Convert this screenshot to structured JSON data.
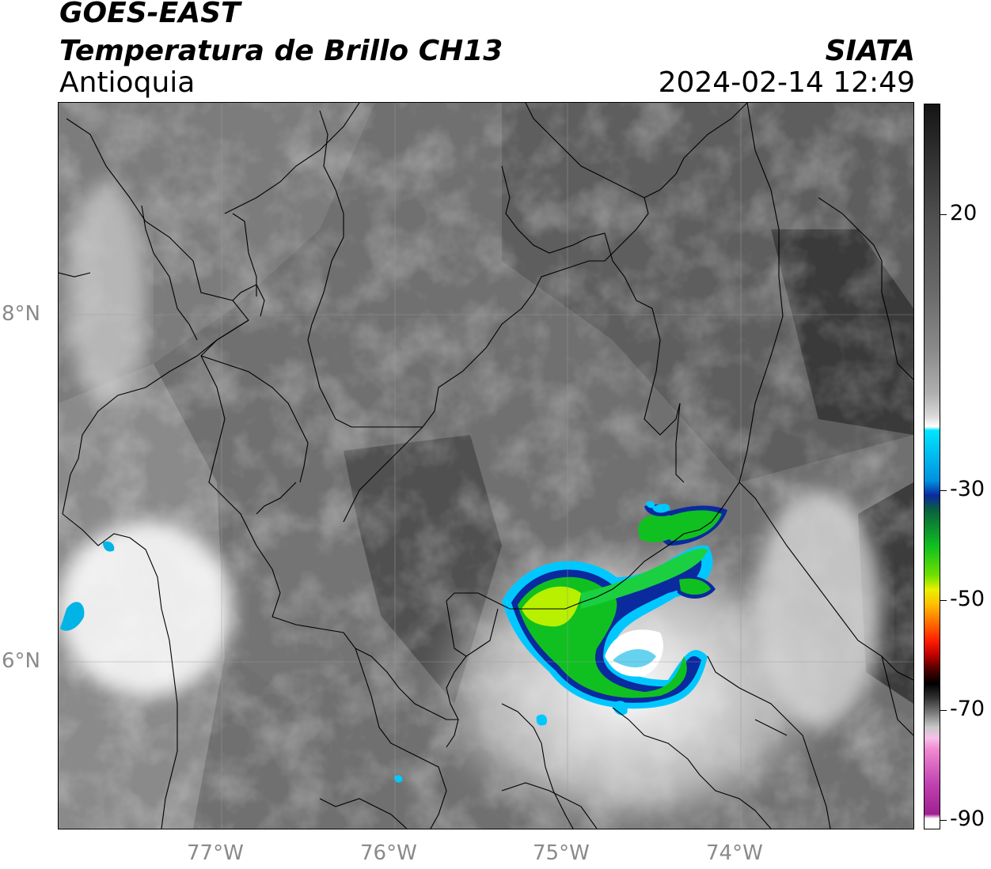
{
  "header": {
    "satellite": "GOES-EAST",
    "product": "Temperatura de Brillo CH13",
    "region": "Antioquia",
    "organization": "SIATA",
    "datetime": "2024-02-14 12:49"
  },
  "map": {
    "lat_ticks": [
      "8°N",
      "6°N"
    ],
    "lon_ticks": [
      "77°W",
      "76°W",
      "75°W",
      "74°W"
    ],
    "lon_range": [
      -77.95,
      -73.0
    ],
    "lat_range": [
      4.95,
      9.15
    ],
    "gridlines": true
  },
  "colorbar": {
    "labels": [
      "20",
      "-30",
      "-50",
      "-70",
      "-90"
    ],
    "min": -90,
    "max": 30,
    "colors": {
      "top": "#151515",
      "warm": "#808080",
      "white": "#ffffff",
      "cyan": "#00e5ff",
      "blue": "#0a2a9e",
      "green": "#10c020",
      "yellow": "#e8f000",
      "orange": "#ff8000",
      "red": "#e00000",
      "black": "#000000",
      "pink": "#f08ad0",
      "magenta": "#a02090"
    }
  }
}
